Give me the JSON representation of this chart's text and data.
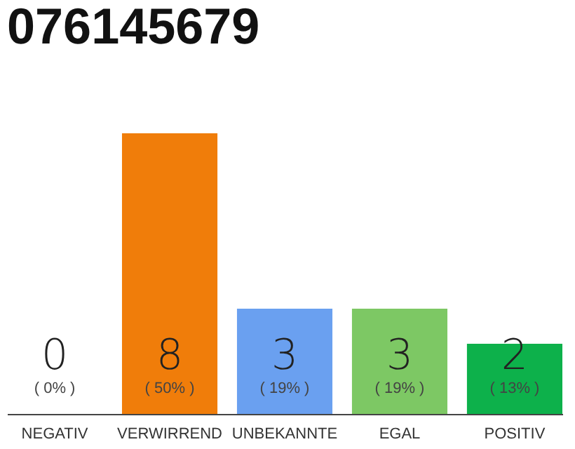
{
  "chart_data": {
    "type": "bar",
    "title": "076145679",
    "categories": [
      "NEGATIV",
      "VERWIRREND",
      "UNBEKANNTE",
      "EGAL",
      "POSITIV"
    ],
    "values": [
      0,
      8,
      3,
      3,
      2
    ],
    "colors": [
      "#888888",
      "#f07d0a",
      "#6aa0f0",
      "#7dc864",
      "#0db14b"
    ],
    "data_labels": true,
    "annotations": [
      "( 0% )",
      "( 50% )",
      "( 19% )",
      "( 19% )",
      "( 13% )"
    ],
    "tick_labels": "x",
    "grid": false,
    "legend": false
  }
}
